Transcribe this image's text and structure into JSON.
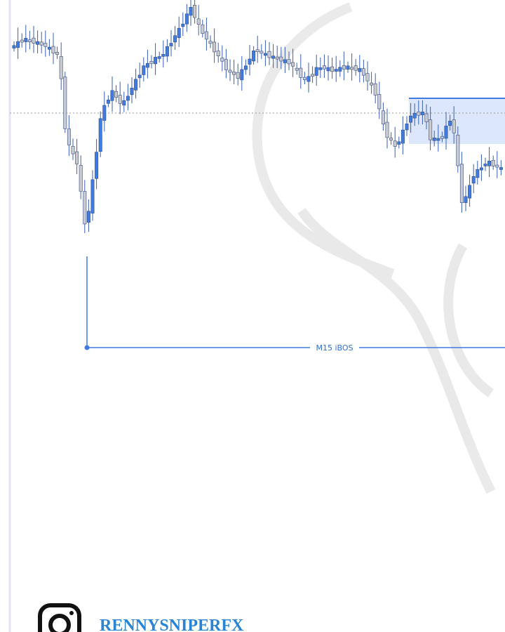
{
  "chart": {
    "label": "M15 iBOS"
  },
  "brand": {
    "handle": "RENNYSNIPERFX"
  }
}
